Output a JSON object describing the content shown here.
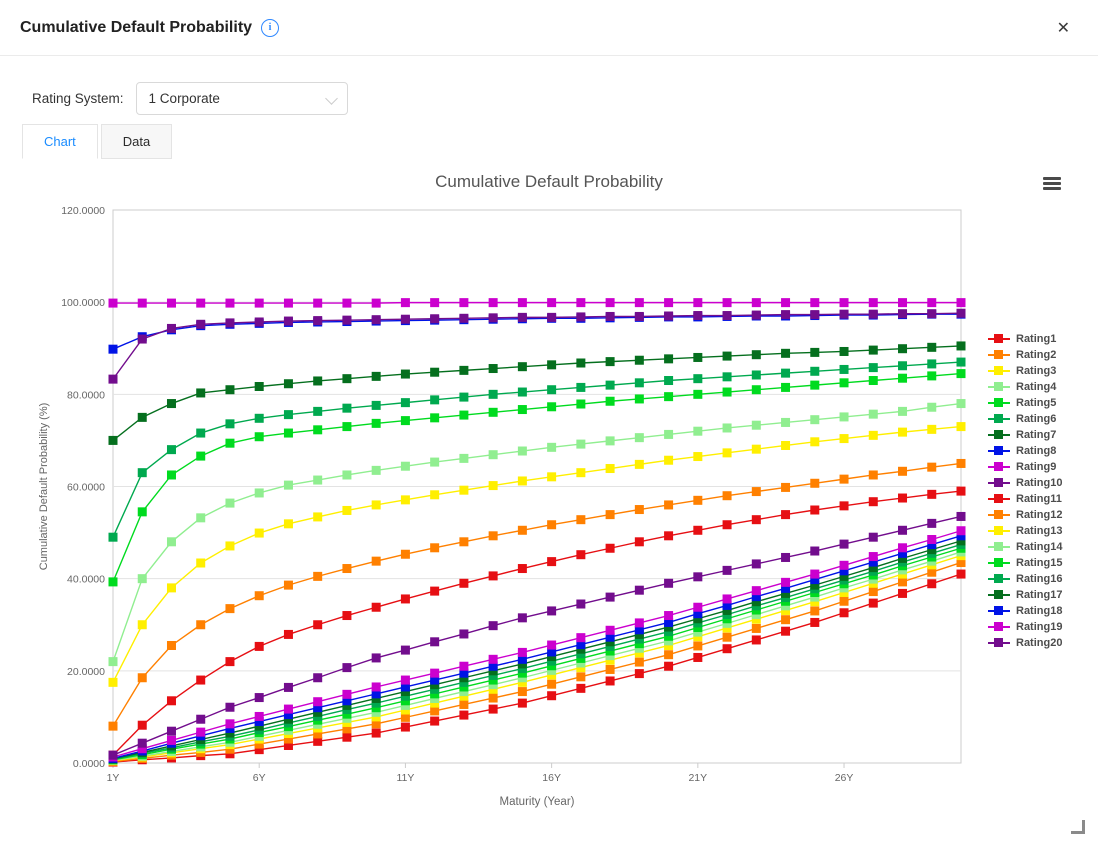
{
  "header": {
    "title": "Cumulative Default Probability",
    "info_icon_glyph": "i",
    "close_glyph": "✕"
  },
  "controls": {
    "rating_system_label": "Rating System:",
    "rating_system_value": "1 Corporate"
  },
  "tabs": {
    "chart": "Chart",
    "data": "Data"
  },
  "ui_colors": {
    "accent": "#1a8cff",
    "info": "#2f88ff",
    "axis_text": "#666666",
    "grid": "#e3e3e3",
    "plot_border": "#cccccc"
  },
  "chart_data": {
    "type": "line",
    "title": "Cumulative Default Probability",
    "xlabel": "Maturity (Year)",
    "ylabel": "Cumulative Default Probability (%)",
    "ylim": [
      0,
      120
    ],
    "y_ticks": [
      0,
      20,
      40,
      60,
      80,
      100,
      120
    ],
    "y_tick_decimals": 4,
    "x_tick_years": [
      1,
      6,
      11,
      16,
      21,
      26
    ],
    "x_tick_labels": [
      "1Y",
      "6Y",
      "11Y",
      "16Y",
      "21Y",
      "26Y"
    ],
    "grid": true,
    "legend_position": "right",
    "marker": "square",
    "x": [
      1,
      2,
      3,
      4,
      5,
      6,
      7,
      8,
      9,
      10,
      11,
      12,
      13,
      14,
      15,
      16,
      17,
      18,
      19,
      20,
      21,
      22,
      23,
      24,
      25,
      26,
      27,
      28,
      29,
      30
    ],
    "series": [
      {
        "name": "Rating1",
        "color": "#e60f13",
        "values": [
          1.7,
          8.2,
          13.5,
          18,
          22,
          25.3,
          27.9,
          30,
          32,
          33.8,
          35.6,
          37.3,
          39,
          40.6,
          42.2,
          43.7,
          45.2,
          46.6,
          48,
          49.3,
          50.5,
          51.7,
          52.8,
          53.9,
          54.9,
          55.8,
          56.7,
          57.5,
          58.3,
          59
        ]
      },
      {
        "name": "Rating2",
        "color": "#ff8000",
        "values": [
          8,
          18.5,
          25.5,
          30,
          33.5,
          36.3,
          38.6,
          40.5,
          42.2,
          43.8,
          45.3,
          46.7,
          48,
          49.3,
          50.5,
          51.7,
          52.8,
          53.9,
          55,
          56,
          57,
          58,
          58.9,
          59.8,
          60.7,
          61.6,
          62.5,
          63.3,
          64.2,
          65
        ]
      },
      {
        "name": "Rating3",
        "color": "#ffef00",
        "values": [
          17.5,
          30,
          38,
          43.4,
          47.1,
          49.9,
          51.9,
          53.4,
          54.8,
          56,
          57.1,
          58.2,
          59.2,
          60.2,
          61.2,
          62.1,
          63,
          63.9,
          64.8,
          65.7,
          66.5,
          67.3,
          68.1,
          68.9,
          69.7,
          70.4,
          71.1,
          71.8,
          72.4,
          73
        ]
      },
      {
        "name": "Rating4",
        "color": "#90ee90",
        "values": [
          22,
          40,
          48,
          53.2,
          56.4,
          58.6,
          60.3,
          61.4,
          62.5,
          63.5,
          64.4,
          65.3,
          66.1,
          66.9,
          67.7,
          68.5,
          69.2,
          69.9,
          70.6,
          71.3,
          72,
          72.7,
          73.3,
          73.9,
          74.5,
          75.1,
          75.7,
          76.3,
          77.2,
          78
        ]
      },
      {
        "name": "Rating5",
        "color": "#00db1f",
        "values": [
          39.3,
          54.5,
          62.5,
          66.6,
          69.4,
          70.8,
          71.6,
          72.3,
          73,
          73.7,
          74.3,
          74.9,
          75.5,
          76.1,
          76.7,
          77.3,
          77.9,
          78.5,
          79,
          79.5,
          80,
          80.5,
          81,
          81.5,
          82,
          82.5,
          83,
          83.5,
          84,
          84.5
        ]
      },
      {
        "name": "Rating6",
        "color": "#00a94f",
        "values": [
          49,
          63,
          68,
          71.6,
          73.6,
          74.8,
          75.6,
          76.3,
          77,
          77.6,
          78.2,
          78.8,
          79.4,
          80,
          80.5,
          81,
          81.5,
          82,
          82.5,
          83,
          83.4,
          83.8,
          84.2,
          84.6,
          85,
          85.4,
          85.8,
          86.2,
          86.6,
          87
        ]
      },
      {
        "name": "Rating7",
        "color": "#056f1e",
        "values": [
          70,
          75,
          78,
          80.3,
          81,
          81.7,
          82.3,
          82.9,
          83.4,
          83.9,
          84.4,
          84.8,
          85.2,
          85.6,
          86,
          86.4,
          86.8,
          87.1,
          87.4,
          87.7,
          88,
          88.3,
          88.6,
          88.9,
          89.1,
          89.3,
          89.6,
          89.9,
          90.2,
          90.5
        ]
      },
      {
        "name": "Rating8",
        "color": "#0013e6",
        "values": [
          89.8,
          92.5,
          94,
          94.9,
          95.2,
          95.4,
          95.6,
          95.7,
          95.8,
          95.9,
          96,
          96.1,
          96.2,
          96.3,
          96.4,
          96.5,
          96.5,
          96.6,
          96.7,
          96.8,
          96.8,
          96.9,
          97,
          97,
          97.1,
          97.2,
          97.2,
          97.3,
          97.4,
          97.4
        ]
      },
      {
        "name": "Rating9",
        "color": "#cb00ce",
        "values": [
          99.8,
          99.8,
          99.8,
          99.8,
          99.8,
          99.8,
          99.8,
          99.8,
          99.8,
          99.8,
          99.9,
          99.9,
          99.9,
          99.9,
          99.9,
          99.9,
          99.9,
          99.9,
          99.9,
          99.9,
          99.9,
          99.9,
          99.9,
          99.9,
          99.9,
          99.9,
          99.9,
          99.9,
          99.9,
          99.9
        ]
      },
      {
        "name": "Rating10",
        "color": "#720d8d",
        "values": [
          83.3,
          92,
          94.3,
          95.2,
          95.5,
          95.7,
          95.9,
          96,
          96.1,
          96.2,
          96.3,
          96.4,
          96.5,
          96.6,
          96.7,
          96.7,
          96.8,
          96.9,
          96.9,
          97,
          97.1,
          97.1,
          97.2,
          97.3,
          97.3,
          97.4,
          97.4,
          97.5,
          97.5,
          97.6
        ]
      },
      {
        "name": "Rating11",
        "color": "#e60f13",
        "values": [
          0.2,
          0.7,
          1.1,
          1.6,
          2,
          2.9,
          3.8,
          4.7,
          5.6,
          6.5,
          7.8,
          9.1,
          10.4,
          11.7,
          13,
          14.6,
          16.2,
          17.8,
          19.4,
          21,
          22.9,
          24.8,
          26.7,
          28.6,
          30.5,
          32.6,
          34.7,
          36.8,
          38.9,
          41
        ]
      },
      {
        "name": "Rating12",
        "color": "#ff8000",
        "values": [
          0.3,
          1,
          1.7,
          2.3,
          3,
          4.1,
          5.2,
          6.3,
          7.4,
          8.5,
          9.9,
          11.3,
          12.7,
          14.1,
          15.5,
          17.1,
          18.7,
          20.3,
          21.9,
          23.5,
          25.4,
          27.3,
          29.2,
          31.1,
          33,
          35.1,
          37.2,
          39.3,
          41.4,
          43.5
        ]
      },
      {
        "name": "Rating13",
        "color": "#ffef00",
        "values": [
          0.5,
          1.3,
          2.2,
          3.1,
          4,
          5.2,
          6.4,
          7.6,
          8.8,
          10,
          11.5,
          13,
          14.5,
          16,
          17.5,
          19.1,
          20.7,
          22.3,
          23.9,
          25.5,
          27.4,
          29.3,
          31.2,
          33.1,
          35,
          37,
          39,
          41,
          43,
          45
        ]
      },
      {
        "name": "Rating14",
        "color": "#90ee90",
        "values": [
          0.6,
          1.5,
          2.5,
          3.5,
          4.5,
          5.8,
          7.1,
          8.4,
          9.7,
          11,
          12.5,
          14,
          15.5,
          17,
          18.5,
          20.1,
          21.7,
          23.3,
          24.9,
          26.5,
          28.4,
          30.3,
          32.2,
          34.1,
          36,
          38,
          39.9,
          41.9,
          43.8,
          45.8
        ]
      },
      {
        "name": "Rating15",
        "color": "#00db1f",
        "values": [
          0.7,
          1.8,
          3,
          4.1,
          5.2,
          6.6,
          7.9,
          9.3,
          10.6,
          12,
          13.5,
          15,
          16.5,
          18,
          19.5,
          21.1,
          22.7,
          24.3,
          25.9,
          27.5,
          29.4,
          31.3,
          33.2,
          35.1,
          37,
          38.9,
          40.8,
          42.8,
          44.7,
          46.6
        ]
      },
      {
        "name": "Rating16",
        "color": "#00a94f",
        "values": [
          0.8,
          2.1,
          3.3,
          4.6,
          5.8,
          7.2,
          8.7,
          10.1,
          11.6,
          13,
          14.5,
          16,
          17.5,
          19,
          20.5,
          22.1,
          23.7,
          25.3,
          26.9,
          28.5,
          30.4,
          32.2,
          34.1,
          35.9,
          37.8,
          39.7,
          41.6,
          43.6,
          45.5,
          47.4
        ]
      },
      {
        "name": "Rating17",
        "color": "#056f1e",
        "values": [
          0.9,
          2.3,
          3.7,
          5.1,
          6.5,
          8,
          9.5,
          11,
          12.5,
          14,
          15.5,
          17,
          18.5,
          20,
          21.5,
          23.1,
          24.7,
          26.3,
          27.9,
          29.5,
          31.3,
          33.1,
          35,
          36.8,
          38.6,
          40.5,
          42.4,
          44.4,
          46.3,
          48.2
        ]
      },
      {
        "name": "Rating18",
        "color": "#0013e6",
        "values": [
          1,
          2.6,
          4.3,
          5.9,
          7.5,
          9,
          10.5,
          12,
          13.5,
          15,
          16.5,
          18,
          19.5,
          21,
          22.5,
          24.1,
          25.7,
          27.3,
          28.9,
          30.5,
          32.4,
          34.2,
          36.1,
          37.9,
          39.8,
          41.7,
          43.6,
          45.5,
          47.4,
          49.3
        ]
      },
      {
        "name": "Rating19",
        "color": "#cb00ce",
        "values": [
          1.3,
          3.1,
          4.9,
          6.7,
          8.5,
          10.1,
          11.7,
          13.3,
          14.9,
          16.5,
          18,
          19.5,
          21,
          22.5,
          24,
          25.6,
          27.2,
          28.8,
          30.4,
          32,
          33.8,
          35.6,
          37.4,
          39.2,
          41,
          42.9,
          44.8,
          46.7,
          48.5,
          50.4
        ]
      },
      {
        "name": "Rating20",
        "color": "#720d8d",
        "values": [
          1.7,
          4.3,
          6.9,
          9.5,
          12.1,
          14.2,
          16.4,
          18.5,
          20.7,
          22.8,
          24.5,
          26.3,
          28,
          29.8,
          31.5,
          33,
          34.5,
          36,
          37.5,
          39,
          40.4,
          41.8,
          43.2,
          44.6,
          46,
          47.5,
          49,
          50.5,
          52,
          53.5
        ]
      }
    ]
  }
}
